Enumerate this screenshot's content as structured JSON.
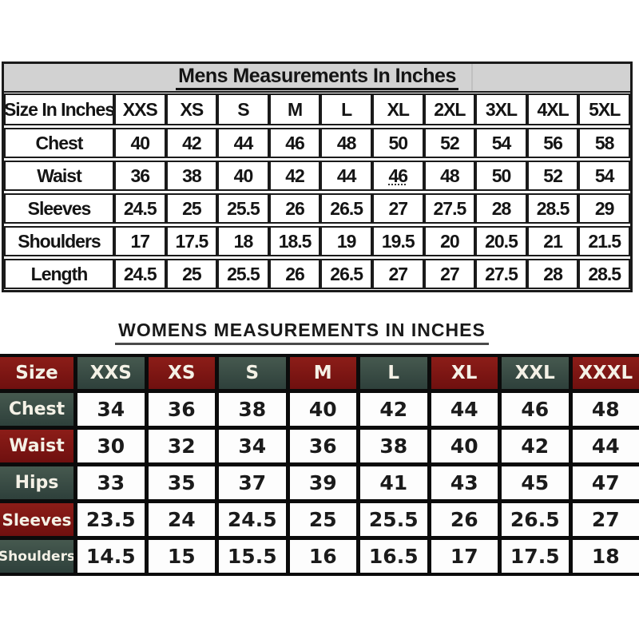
{
  "mens": {
    "title": "Mens Measurements In Inches",
    "header": [
      "Size In Inches",
      "XXS",
      "XS",
      "S",
      "M",
      "L",
      "XL",
      "2XL",
      "3XL",
      "4XL",
      "5XL"
    ],
    "rows": [
      {
        "label": "Chest",
        "values": [
          "40",
          "42",
          "44",
          "46",
          "48",
          "50",
          "52",
          "54",
          "56",
          "58"
        ]
      },
      {
        "label": "Waist",
        "values": [
          "36",
          "38",
          "40",
          "42",
          "44",
          "46",
          "48",
          "50",
          "52",
          "54"
        ],
        "underline_index": 5
      },
      {
        "label": "Sleeves",
        "values": [
          "24.5",
          "25",
          "25.5",
          "26",
          "26.5",
          "27",
          "27.5",
          "28",
          "28.5",
          "29"
        ]
      },
      {
        "label": "Shoulders",
        "values": [
          "17",
          "17.5",
          "18",
          "18.5",
          "19",
          "19.5",
          "20",
          "20.5",
          "21",
          "21.5"
        ]
      },
      {
        "label": "Length",
        "values": [
          "24.5",
          "25",
          "25.5",
          "26",
          "26.5",
          "27",
          "27",
          "27.5",
          "28",
          "28.5"
        ]
      }
    ],
    "band_color": "#d2d2d2"
  },
  "womens": {
    "title": "WOMENS MEASUREMENTS IN INCHES",
    "header": [
      "Size",
      "XXS",
      "XS",
      "S",
      "M",
      "L",
      "XL",
      "XXL",
      "XXXL"
    ],
    "header_colors": [
      "maroon",
      "teal",
      "maroon",
      "teal",
      "maroon",
      "teal",
      "maroon",
      "teal",
      "maroon"
    ],
    "rows": [
      {
        "label": "Chest",
        "label_color": "teal",
        "values": [
          "34",
          "36",
          "38",
          "40",
          "42",
          "44",
          "46",
          "48"
        ]
      },
      {
        "label": "Waist",
        "label_color": "maroon",
        "values": [
          "30",
          "32",
          "34",
          "36",
          "38",
          "40",
          "42",
          "44"
        ]
      },
      {
        "label": "Hips",
        "label_color": "teal",
        "values": [
          "33",
          "35",
          "37",
          "39",
          "41",
          "43",
          "45",
          "47"
        ]
      },
      {
        "label": "Sleeves",
        "label_color": "maroon",
        "values": [
          "23.5",
          "24",
          "24.5",
          "25",
          "25.5",
          "26",
          "26.5",
          "27"
        ]
      },
      {
        "label": "Shoulders",
        "label_color": "teal",
        "values": [
          "14.5",
          "15",
          "15.5",
          "16",
          "16.5",
          "17",
          "17.5",
          "18"
        ]
      }
    ],
    "colors": {
      "maroon": "#6f100f",
      "maroon_light": "#8c1d18",
      "teal": "#2e403b",
      "teal_light": "#46594f",
      "grid": "#0b0b0b",
      "label_text": "#f4f1e6",
      "value_text": "#1b1b1b"
    }
  },
  "chart_data": [
    {
      "type": "table",
      "title": "Mens Measurements In Inches",
      "columns": [
        "Size In Inches",
        "XXS",
        "XS",
        "S",
        "M",
        "L",
        "XL",
        "2XL",
        "3XL",
        "4XL",
        "5XL"
      ],
      "rows": [
        [
          "Chest",
          40,
          42,
          44,
          46,
          48,
          50,
          52,
          54,
          56,
          58
        ],
        [
          "Waist",
          36,
          38,
          40,
          42,
          44,
          46,
          48,
          50,
          52,
          54
        ],
        [
          "Sleeves",
          24.5,
          25,
          25.5,
          26,
          26.5,
          27,
          27.5,
          28,
          28.5,
          29
        ],
        [
          "Shoulders",
          17,
          17.5,
          18,
          18.5,
          19,
          19.5,
          20,
          20.5,
          21,
          21.5
        ],
        [
          "Length",
          24.5,
          25,
          25.5,
          26,
          26.5,
          27,
          27,
          27.5,
          28,
          28.5
        ]
      ]
    },
    {
      "type": "table",
      "title": "WOMENS MEASUREMENTS IN INCHES",
      "columns": [
        "Size",
        "XXS",
        "XS",
        "S",
        "M",
        "L",
        "XL",
        "XXL",
        "XXXL"
      ],
      "rows": [
        [
          "Chest",
          34,
          36,
          38,
          40,
          42,
          44,
          46,
          48
        ],
        [
          "Waist",
          30,
          32,
          34,
          36,
          38,
          40,
          42,
          44
        ],
        [
          "Hips",
          33,
          35,
          37,
          39,
          41,
          43,
          45,
          47
        ],
        [
          "Sleeves",
          23.5,
          24,
          24.5,
          25,
          25.5,
          26,
          26.5,
          27
        ],
        [
          "Shoulders",
          14.5,
          15,
          15.5,
          16,
          16.5,
          17,
          17.5,
          18
        ]
      ]
    }
  ]
}
